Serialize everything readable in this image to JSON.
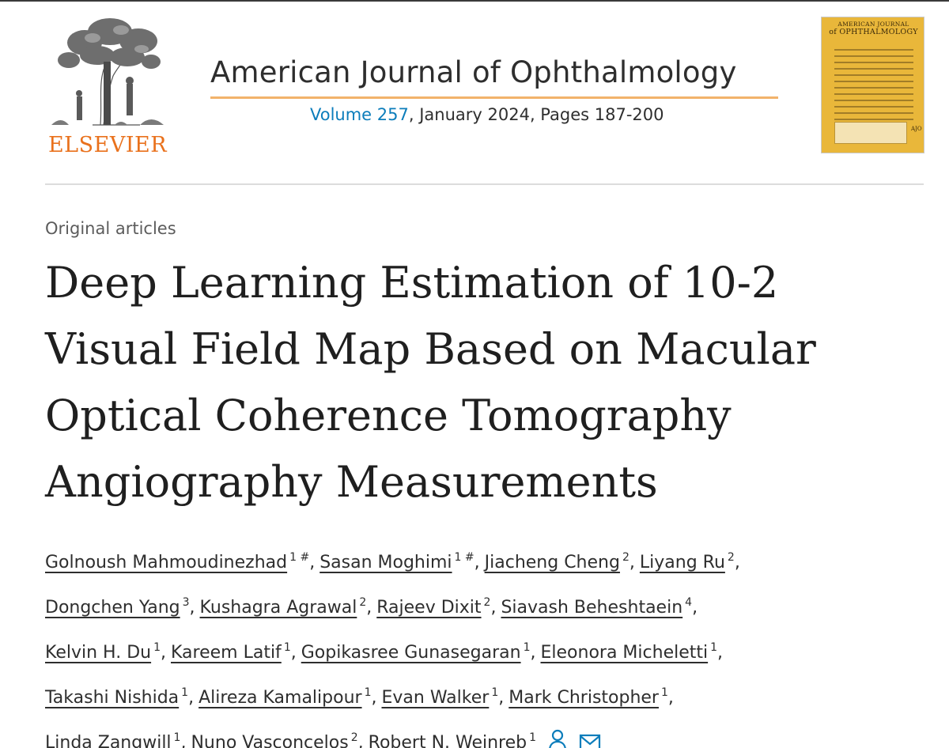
{
  "publisher": {
    "name": "ELSEVIER",
    "logo_icon": "elsevier-tree-logo-icon"
  },
  "journal": {
    "title": "American Journal of Ophthalmology",
    "volume_link": "Volume 257",
    "issue_details": ", January 2024, Pages 187-200",
    "accent_color": "#0c7dbb",
    "underline_color": "#f2b36b",
    "cover": {
      "title_top": "AMERICAN JOURNAL",
      "title_main": "of OPHTHALMOLOGY",
      "abbrev": "AJO",
      "background": "#e9b73a"
    }
  },
  "article": {
    "section": "Original articles",
    "title_lines": [
      "Deep Learning Estimation of 10-2",
      "Visual Field Map Based on Macular",
      "Optical Coherence Tomography",
      "Angiography Measurements"
    ]
  },
  "authors": {
    "lines": [
      [
        {
          "name": "Golnoush Mahmoudinezhad",
          "sup": "1 #"
        },
        {
          "name": "Sasan Moghimi",
          "sup": "1 #"
        },
        {
          "name": "Jiacheng Cheng",
          "sup": "2"
        },
        {
          "name": "Liyang Ru",
          "sup": "2"
        }
      ],
      [
        {
          "name": "Dongchen Yang",
          "sup": "3"
        },
        {
          "name": "Kushagra Agrawal",
          "sup": "2"
        },
        {
          "name": "Rajeev Dixit",
          "sup": "2"
        },
        {
          "name": "Siavash Beheshtaein",
          "sup": "4"
        }
      ],
      [
        {
          "name": "Kelvin H. Du",
          "sup": "1"
        },
        {
          "name": "Kareem Latif",
          "sup": "1"
        },
        {
          "name": "Gopikasree Gunasegaran",
          "sup": "1"
        },
        {
          "name": "Eleonora Micheletti",
          "sup": "1"
        }
      ],
      [
        {
          "name": "Takashi Nishida",
          "sup": "1"
        },
        {
          "name": "Alireza Kamalipour",
          "sup": "1"
        },
        {
          "name": "Evan Walker",
          "sup": "1"
        },
        {
          "name": "Mark Christopher",
          "sup": "1"
        }
      ],
      [
        {
          "name": "Linda Zangwill",
          "sup": "1"
        },
        {
          "name": "Nuno Vasconcelos",
          "sup": "2"
        },
        {
          "name": "Robert N. Weinreb",
          "sup": "1"
        }
      ]
    ],
    "icons": [
      "person-icon",
      "envelope-icon"
    ]
  }
}
